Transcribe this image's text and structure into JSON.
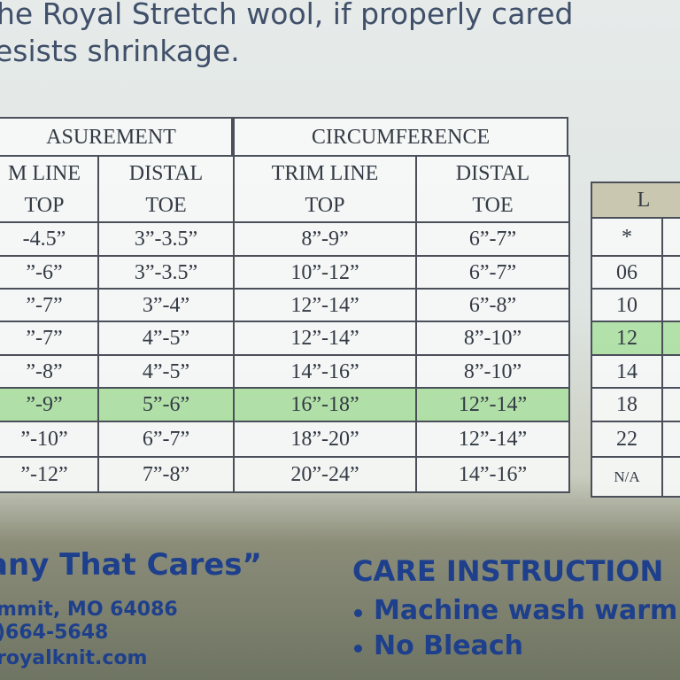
{
  "header": {
    "lines": [
      "he Royal Stretch wool, if properly cared",
      "esists shrinkage."
    ]
  },
  "table": {
    "groups": [
      "ASUREMENT",
      "CIRCUMFERENCE"
    ],
    "columns": [
      [
        "M LINE",
        "TOP"
      ],
      [
        "DISTAL",
        "TOE"
      ],
      [
        "TRIM LINE",
        "TOP"
      ],
      [
        "DISTAL",
        "TOE"
      ]
    ],
    "rows": [
      [
        "-4.5”",
        "3”-3.5”",
        "8”-9”",
        "6”-7”"
      ],
      [
        "”-6”",
        "3”-3.5”",
        "10”-12”",
        "6”-7”"
      ],
      [
        "”-7”",
        "3”-4”",
        "12”-14”",
        "6”-8”"
      ],
      [
        "”-7”",
        "4”-5”",
        "12”-14”",
        "8”-10”"
      ],
      [
        "”-8”",
        "4”-5”",
        "14”-16”",
        "8”-10”"
      ],
      [
        "”-9”",
        "5”-6”",
        "16”-18”",
        "12”-14”"
      ],
      [
        "”-10”",
        "6”-7”",
        "18”-20”",
        "12”-14”"
      ],
      [
        "”-12”",
        "7”-8”",
        "20”-24”",
        "14”-16”"
      ]
    ]
  },
  "side_table": {
    "header": "L",
    "rows": [
      "*",
      "06",
      "10",
      "12",
      "14",
      "18",
      "22",
      "N/A"
    ]
  },
  "footer": {
    "slogan": "any That Cares”",
    "address": "mmit, MO 64086",
    "phone": ")664-5648",
    "web": "royalknit.com",
    "care_title": "CARE INSTRUCTION",
    "care_items": [
      "Machine wash warm",
      "No Bleach"
    ]
  }
}
